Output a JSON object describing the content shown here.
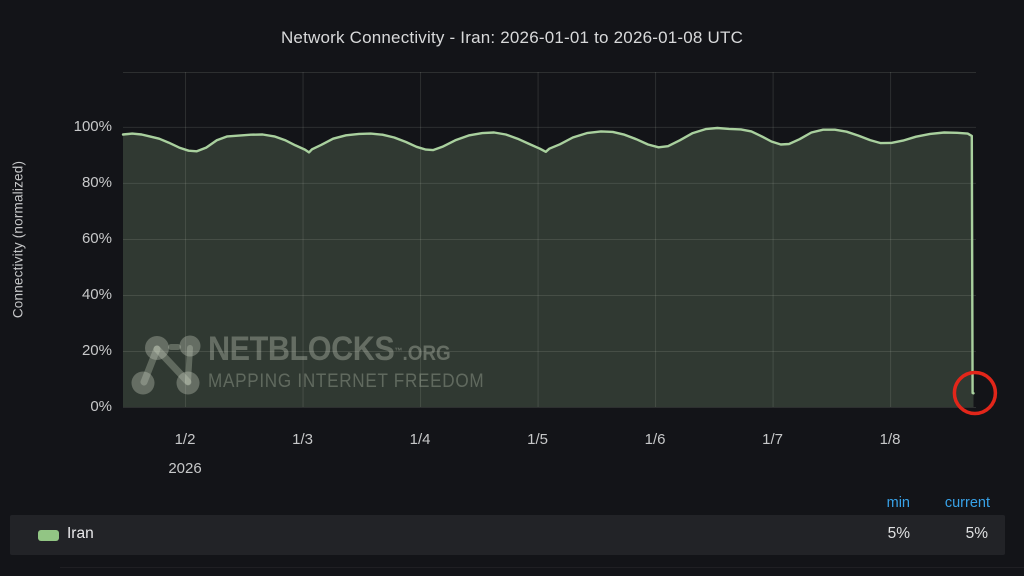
{
  "panel": {
    "title": "Network Connectivity - Iran: 2026-01-01 to 2026-01-08 UTC"
  },
  "chart_data": {
    "type": "area",
    "title": "Network Connectivity - Iran: 2026-01-01 to 2026-01-08 UTC",
    "xlabel": "",
    "ylabel": "Connectivity (normalized)",
    "x_unit": "day of January 2026 (UTC)",
    "xlim": [
      1.472,
      8.731
    ],
    "ylim": [
      0,
      119.6
    ],
    "grid": true,
    "legend_position": "bottom",
    "yticks": {
      "values": [
        0,
        20,
        40,
        60,
        80,
        100
      ],
      "labels": [
        "0%",
        "20%",
        "40%",
        "60%",
        "80%",
        "100%"
      ]
    },
    "xticks": {
      "values": [
        2,
        3,
        4,
        5,
        6,
        7,
        8
      ],
      "labels": [
        "1/2",
        "1/3",
        "1/4",
        "1/5",
        "1/6",
        "1/7",
        "1/8"
      ]
    },
    "x_secondary_label": "2026",
    "series": [
      {
        "name": "Iran",
        "line_color": "#a9d09e",
        "fill_color": "rgba(166,207,156,0.20)",
        "points": [
          [
            1.472,
            97.3
          ],
          [
            1.55,
            97.6
          ],
          [
            1.63,
            97.3
          ],
          [
            1.7,
            96.6
          ],
          [
            1.78,
            95.8
          ],
          [
            1.86,
            94.4
          ],
          [
            1.95,
            92.6
          ],
          [
            2.03,
            91.5
          ],
          [
            2.1,
            91.3
          ],
          [
            2.18,
            92.6
          ],
          [
            2.27,
            95.2
          ],
          [
            2.36,
            96.6
          ],
          [
            2.46,
            96.9
          ],
          [
            2.56,
            97.2
          ],
          [
            2.66,
            97.3
          ],
          [
            2.76,
            96.6
          ],
          [
            2.85,
            95.3
          ],
          [
            2.94,
            93.4
          ],
          [
            3.02,
            91.9
          ],
          [
            3.055,
            90.9
          ],
          [
            3.08,
            92.0
          ],
          [
            3.16,
            93.6
          ],
          [
            3.26,
            95.8
          ],
          [
            3.37,
            97.0
          ],
          [
            3.48,
            97.5
          ],
          [
            3.58,
            97.6
          ],
          [
            3.68,
            97.2
          ],
          [
            3.78,
            96.2
          ],
          [
            3.88,
            94.6
          ],
          [
            3.97,
            92.9
          ],
          [
            4.05,
            91.9
          ],
          [
            4.11,
            91.7
          ],
          [
            4.19,
            92.9
          ],
          [
            4.3,
            95.2
          ],
          [
            4.42,
            97.0
          ],
          [
            4.53,
            97.8
          ],
          [
            4.63,
            98.0
          ],
          [
            4.73,
            97.3
          ],
          [
            4.83,
            95.8
          ],
          [
            4.93,
            93.9
          ],
          [
            5.02,
            92.2
          ],
          [
            5.07,
            91.1
          ],
          [
            5.1,
            92.2
          ],
          [
            5.19,
            93.8
          ],
          [
            5.3,
            96.2
          ],
          [
            5.42,
            97.8
          ],
          [
            5.54,
            98.4
          ],
          [
            5.64,
            98.2
          ],
          [
            5.74,
            97.2
          ],
          [
            5.84,
            95.6
          ],
          [
            5.94,
            93.7
          ],
          [
            6.03,
            92.7
          ],
          [
            6.11,
            93.1
          ],
          [
            6.21,
            95.2
          ],
          [
            6.32,
            97.8
          ],
          [
            6.43,
            99.2
          ],
          [
            6.53,
            99.6
          ],
          [
            6.63,
            99.3
          ],
          [
            6.73,
            99.1
          ],
          [
            6.82,
            98.4
          ],
          [
            6.9,
            96.8
          ],
          [
            6.99,
            94.8
          ],
          [
            7.07,
            93.7
          ],
          [
            7.14,
            93.9
          ],
          [
            7.23,
            95.6
          ],
          [
            7.33,
            98.0
          ],
          [
            7.43,
            99.0
          ],
          [
            7.53,
            99.0
          ],
          [
            7.63,
            98.3
          ],
          [
            7.73,
            96.9
          ],
          [
            7.83,
            95.3
          ],
          [
            7.92,
            94.2
          ],
          [
            8.01,
            94.3
          ],
          [
            8.11,
            95.1
          ],
          [
            8.22,
            96.5
          ],
          [
            8.34,
            97.5
          ],
          [
            8.46,
            98.0
          ],
          [
            8.57,
            97.9
          ],
          [
            8.66,
            97.6
          ],
          [
            8.695,
            96.8
          ],
          [
            8.702,
            5.0
          ],
          [
            8.71,
            4.9
          ]
        ]
      }
    ],
    "annotation": {
      "type": "circle",
      "x_day": 8.722,
      "y_pct": 5,
      "radius_px": 20.5,
      "color": "#e2261a",
      "stroke_px": 3.5,
      "meaning": "highlights connectivity collapse to 5% at end of range"
    },
    "grid_color": "rgba(204,211,201,0.14)"
  },
  "legend": {
    "header": [
      "min",
      "current"
    ],
    "rows": [
      {
        "label": "Iran",
        "swatch_color": "#92c584",
        "min": "5%",
        "current": "5%"
      }
    ],
    "header_color": "#38a2e8"
  },
  "watermark": {
    "line1": "NETBLOCKS",
    "tm": "™",
    "org": ".ORG",
    "line2": "MAPPING INTERNET FREEDOM"
  }
}
